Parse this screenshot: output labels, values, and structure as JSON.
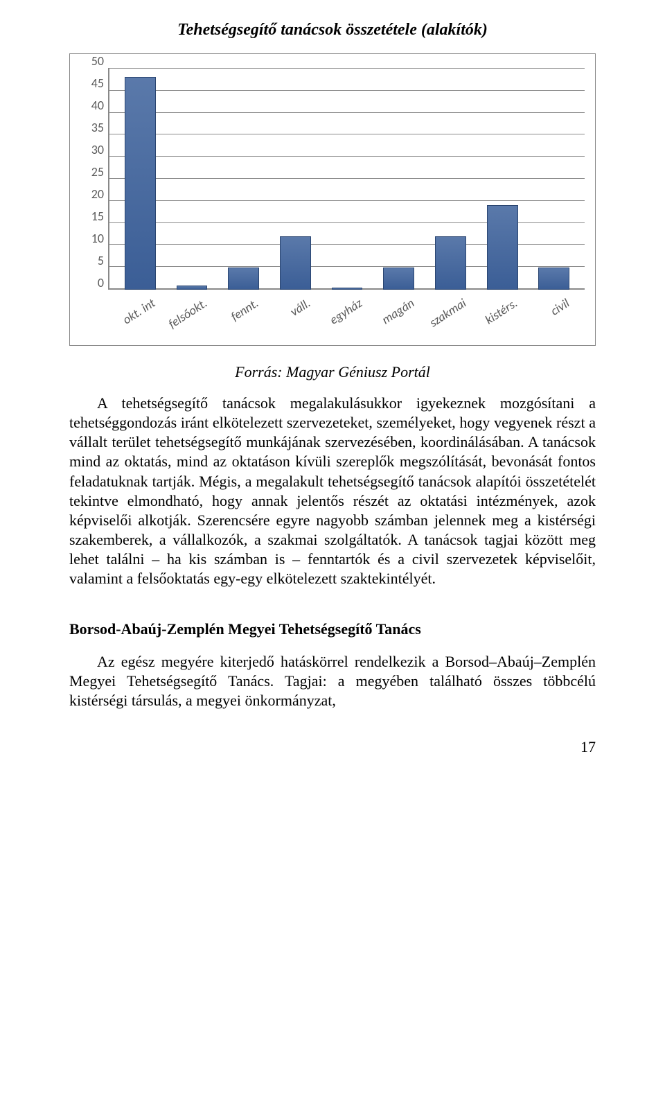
{
  "chart": {
    "title": "Tehetségsegítő tanácsok összetétele (alakítók)",
    "type": "bar",
    "ylim": [
      0,
      50
    ],
    "ytick_step": 5,
    "yticks": [
      0,
      5,
      10,
      15,
      20,
      25,
      30,
      35,
      40,
      45,
      50
    ],
    "categories": [
      "okt. int",
      "felsőokt.",
      "fennt.",
      "váll.",
      "egyház",
      "magán",
      "szakmai",
      "kistérs.",
      "civil"
    ],
    "values": [
      48,
      1,
      5,
      12,
      0.5,
      5,
      12,
      19,
      5
    ],
    "bar_color_top": "#5a79aa",
    "bar_color_bottom": "#3b5e96",
    "bar_border": "#2a4570",
    "grid_color": "#888888",
    "background_color": "#ffffff",
    "axis_label_color": "#595959",
    "axis_fontsize": 18,
    "title_fontsize": 24
  },
  "source": "Forrás: Magyar Géniusz Portál",
  "paragraph1": "A tehetségsegítő tanácsok megalakulásukkor igyekeznek mozgósítani a tehetséggondozás iránt elkötelezett szervezeteket, személyeket, hogy vegyenek részt a vállalt terület tehetségsegítő munkájának szervezésében, koordinálásában. A tanácsok mind az oktatás, mind az oktatáson kívüli szereplők megszólítását, bevonását fontos feladatuknak tartják. Mégis, a megalakult tehetségsegítő tanácsok alapítói összetételét tekintve elmondható, hogy annak jelentős részét az oktatási intézmények, azok képviselői alkotják. Szerencsére egyre nagyobb számban jelennek meg a kistérségi szakemberek, a vállalkozók, a szakmai szolgáltatók. A tanácsok tagjai között meg lehet találni – ha kis számban is – fenntartók és a civil szervezetek képviselőit, valamint a felsőoktatás egy-egy elkötelezett szaktekintélyét.",
  "section_heading": "Borsod-Abaúj-Zemplén Megyei Tehetségsegítő Tanács",
  "paragraph2": "Az egész megyére kiterjedő hatáskörrel rendelkezik a Borsod–Abaúj–Zemplén Megyei Tehetségsegítő Tanács. Tagjai: a megyében található összes többcélú kistérségi társulás, a megyei önkormányzat,",
  "page_number": "17"
}
